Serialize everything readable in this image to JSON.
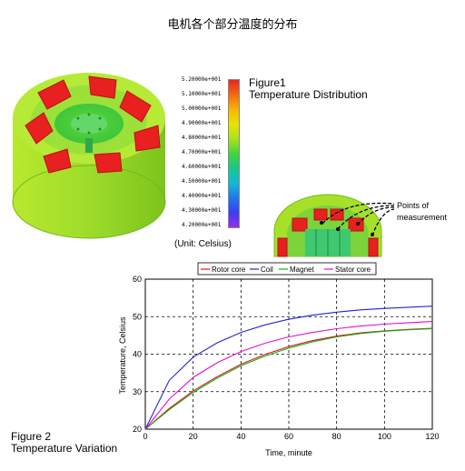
{
  "page": {
    "title": "电机各个部分温度的分布",
    "figure1_title": "Figure1",
    "figure1_subtitle": "Temperature Distribution",
    "unit_label": "(Unit: Celsius)",
    "points_label_line1": "Points of",
    "points_label_line2": "measurement",
    "figure2_title": "Figure 2",
    "figure2_subtitle": "Temperature Variation"
  },
  "colorbar": {
    "ticks": [
      "5.20000e+001",
      "5.10000e+001",
      "5.00000e+001",
      "4.90000e+001",
      "4.80000e+001",
      "4.70000e+001",
      "4.60000e+001",
      "4.50000e+001",
      "4.40000e+001",
      "4.30000e+001",
      "4.20000e+001"
    ],
    "colors": [
      "#e8231e",
      "#f26a10",
      "#f7b500",
      "#e9e400",
      "#a8e21c",
      "#41d63a",
      "#16c98a",
      "#12b8d9",
      "#1f78e8",
      "#3a3ef0",
      "#9a2ef0"
    ]
  },
  "chart_data": {
    "type": "line",
    "title": "",
    "xlabel": "Time, minute",
    "ylabel": "Temperature, Celsius",
    "xlim": [
      0,
      120
    ],
    "ylim": [
      20,
      60
    ],
    "xticks": [
      0,
      20,
      40,
      60,
      80,
      100,
      120
    ],
    "yticks": [
      20,
      30,
      40,
      50,
      60
    ],
    "grid": true,
    "legend_position": "top",
    "x": [
      0,
      10,
      20,
      30,
      40,
      50,
      60,
      70,
      80,
      90,
      100,
      110,
      120
    ],
    "series": [
      {
        "name": "Rotor core",
        "color": "#e8101a",
        "values": [
          20,
          25.5,
          30.2,
          34.0,
          37.3,
          39.9,
          42.0,
          43.6,
          44.8,
          45.7,
          46.2,
          46.6,
          46.9
        ]
      },
      {
        "name": "Coil",
        "color": "#2323d8",
        "values": [
          20,
          33.0,
          39.2,
          43.0,
          45.8,
          47.8,
          49.3,
          50.4,
          51.2,
          51.8,
          52.2,
          52.5,
          52.8
        ]
      },
      {
        "name": "Magnet",
        "color": "#10b010",
        "values": [
          20,
          25.2,
          29.8,
          33.6,
          36.9,
          39.5,
          41.6,
          43.3,
          44.6,
          45.5,
          46.1,
          46.5,
          46.8
        ]
      },
      {
        "name": "Stator core",
        "color": "#e010d0",
        "values": [
          20,
          28.0,
          33.8,
          37.7,
          40.7,
          42.9,
          44.6,
          45.8,
          46.8,
          47.5,
          48.0,
          48.4,
          48.7
        ]
      }
    ]
  }
}
